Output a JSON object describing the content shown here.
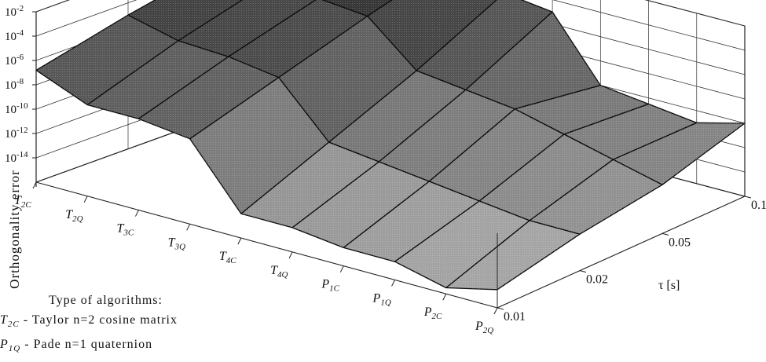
{
  "chart_data": {
    "type": "surface3d",
    "zlabel": "Orthogonality error",
    "z_ticks": [
      {
        "base": "10",
        "exp": "-2"
      },
      {
        "base": "10",
        "exp": "-4"
      },
      {
        "base": "10",
        "exp": "-6"
      },
      {
        "base": "10",
        "exp": "-8"
      },
      {
        "base": "10",
        "exp": "-10"
      },
      {
        "base": "10",
        "exp": "-12"
      },
      {
        "base": "10",
        "exp": "-14"
      }
    ],
    "z_scale": "log",
    "x_categories": [
      {
        "main": "T",
        "sub": "2C"
      },
      {
        "main": "T",
        "sub": "2Q"
      },
      {
        "main": "T",
        "sub": "3C"
      },
      {
        "main": "T",
        "sub": "3Q"
      },
      {
        "main": "T",
        "sub": "4C"
      },
      {
        "main": "T",
        "sub": "4Q"
      },
      {
        "main": "P",
        "sub": "1C"
      },
      {
        "main": "P",
        "sub": "1Q"
      },
      {
        "main": "P",
        "sub": "2C"
      },
      {
        "main": "P",
        "sub": "2Q"
      }
    ],
    "y_label": "τ [s]",
    "y_ticks": [
      "0.01",
      "0.02",
      "0.05",
      "0.1"
    ],
    "z_exponents": [
      [
        -6.8,
        -5.0,
        -3.5,
        -2.0
      ],
      [
        -8.5,
        -6.0,
        -4.0,
        -2.2
      ],
      [
        -8.5,
        -6.2,
        -4.2,
        -2.4
      ],
      [
        -9.0,
        -6.8,
        -4.6,
        -2.6
      ],
      [
        -14.0,
        -11.0,
        -8.0,
        -4.5
      ],
      [
        -14.0,
        -11.5,
        -8.5,
        -5.0
      ],
      [
        -14.5,
        -12.0,
        -9.0,
        -10.0
      ],
      [
        -14.5,
        -12.5,
        -10.0,
        -10.5
      ],
      [
        -15.5,
        -13.0,
        -11.0,
        -11.0
      ],
      [
        -14.5,
        -13.0,
        -12.0,
        -10.0
      ]
    ]
  },
  "legend": {
    "title": "Type of algorithms:",
    "items": [
      {
        "main": "T",
        "sub": "2C",
        "text": " - Taylor n=2 cosine matrix"
      },
      {
        "main": "P",
        "sub": "1Q",
        "text": " - Pade n=1 quaternion"
      }
    ]
  }
}
